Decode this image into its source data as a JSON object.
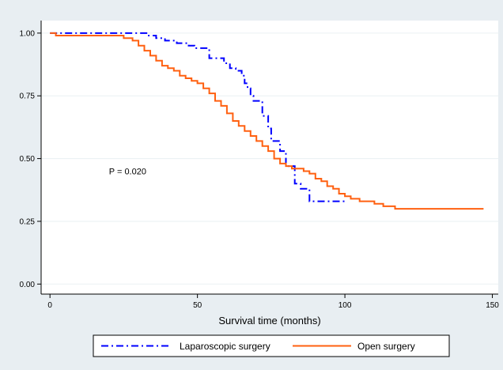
{
  "chart_data": {
    "type": "line",
    "title": "",
    "xlabel": "Survival time (months)",
    "ylabel": "",
    "xlim": [
      -3,
      152
    ],
    "ylim": [
      -0.04,
      1.05
    ],
    "xticks": [
      0,
      50,
      100,
      150
    ],
    "xtick_labels": [
      "0",
      "50",
      "100",
      "150"
    ],
    "yticks": [
      0,
      0.25,
      0.5,
      0.75,
      1.0
    ],
    "ytick_labels": [
      "0.00",
      "0.25",
      "0.50",
      "0.75",
      "1.00"
    ],
    "grid": "horizontal",
    "legend_position": "bottom",
    "annotation": {
      "text": "P = 0.020",
      "x": 20,
      "y": 0.45
    },
    "series": [
      {
        "name": "Laparoscopic surgery",
        "color": "#0000ff",
        "style": "dash-dot",
        "x": [
          0,
          2,
          33,
          35,
          36,
          37,
          39,
          41,
          43,
          44,
          47,
          49,
          52,
          54,
          56,
          58,
          59,
          61,
          63,
          65,
          66,
          67,
          68,
          69,
          70,
          72,
          74,
          75,
          76,
          78,
          80,
          83,
          85,
          88,
          100
        ],
        "y": [
          1.0,
          1.0,
          0.99,
          0.99,
          0.98,
          0.98,
          0.97,
          0.97,
          0.96,
          0.96,
          0.95,
          0.94,
          0.94,
          0.9,
          0.9,
          0.9,
          0.88,
          0.86,
          0.85,
          0.83,
          0.8,
          0.78,
          0.75,
          0.73,
          0.73,
          0.67,
          0.62,
          0.57,
          0.57,
          0.53,
          0.47,
          0.4,
          0.38,
          0.33,
          0.33
        ]
      },
      {
        "name": "Open surgery",
        "color": "#ff6010",
        "style": "solid",
        "x": [
          0,
          2,
          22,
          25,
          28,
          30,
          32,
          34,
          36,
          38,
          40,
          42,
          44,
          46,
          48,
          50,
          52,
          54,
          56,
          58,
          60,
          62,
          64,
          66,
          68,
          70,
          72,
          74,
          76,
          78,
          80,
          82,
          84,
          86,
          88,
          90,
          92,
          94,
          96,
          98,
          100,
          102,
          105,
          110,
          113,
          115,
          117,
          147
        ],
        "y": [
          1.0,
          0.99,
          0.99,
          0.98,
          0.97,
          0.95,
          0.93,
          0.91,
          0.89,
          0.87,
          0.86,
          0.85,
          0.83,
          0.82,
          0.81,
          0.8,
          0.78,
          0.76,
          0.73,
          0.71,
          0.68,
          0.65,
          0.63,
          0.61,
          0.59,
          0.57,
          0.55,
          0.53,
          0.5,
          0.48,
          0.47,
          0.46,
          0.46,
          0.45,
          0.44,
          0.42,
          0.41,
          0.39,
          0.38,
          0.36,
          0.35,
          0.34,
          0.33,
          0.32,
          0.31,
          0.31,
          0.3,
          0.3
        ]
      }
    ]
  }
}
